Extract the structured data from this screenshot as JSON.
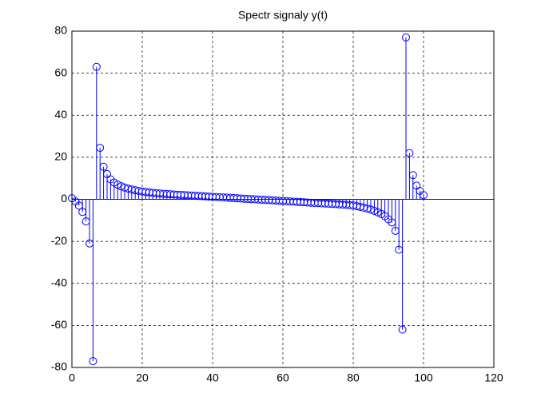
{
  "chart_data": {
    "type": "stem",
    "title": "Spectr signaly y(t)",
    "x": [
      0,
      1,
      2,
      3,
      4,
      5,
      6,
      7,
      8,
      9,
      10,
      11,
      12,
      13,
      14,
      15,
      16,
      17,
      18,
      19,
      20,
      21,
      22,
      23,
      24,
      25,
      26,
      27,
      28,
      29,
      30,
      31,
      32,
      33,
      34,
      35,
      36,
      37,
      38,
      39,
      40,
      41,
      42,
      43,
      44,
      45,
      46,
      47,
      48,
      49,
      50,
      51,
      52,
      53,
      54,
      55,
      56,
      57,
      58,
      59,
      60,
      61,
      62,
      63,
      64,
      65,
      66,
      67,
      68,
      69,
      70,
      71,
      72,
      73,
      74,
      75,
      76,
      77,
      78,
      79,
      80,
      81,
      82,
      83,
      84,
      85,
      86,
      87,
      88,
      89,
      90,
      91,
      92,
      93,
      94,
      95,
      96,
      97,
      98,
      99,
      100
    ],
    "values": [
      0.5,
      -1,
      -3,
      -6,
      -10.5,
      -21,
      -77,
      63,
      24.5,
      15.5,
      12,
      9.5,
      8,
      7,
      6.2,
      5.6,
      5.1,
      4.7,
      4.3,
      4,
      3.7,
      3.5,
      3.3,
      3.1,
      2.9,
      2.8,
      2.6,
      2.5,
      2.4,
      2.3,
      2.2,
      2.1,
      2,
      1.9,
      1.8,
      1.7,
      1.6,
      1.5,
      1.4,
      1.3,
      1.2,
      1.1,
      1,
      0.9,
      0.8,
      0.7,
      0.6,
      0.5,
      0.4,
      0.3,
      0.2,
      0.1,
      0,
      -0.1,
      -0.2,
      -0.3,
      -0.4,
      -0.5,
      -0.6,
      -0.7,
      -0.8,
      -0.9,
      -1,
      -1.1,
      -1.2,
      -1.3,
      -1.4,
      -1.5,
      -1.6,
      -1.7,
      -1.8,
      -1.9,
      -2,
      -2.1,
      -2.2,
      -2.3,
      -2.4,
      -2.5,
      -2.6,
      -2.8,
      -2.9,
      -3.3,
      -3.6,
      -4,
      -4.4,
      -4.9,
      -5.5,
      -6.2,
      -7,
      -8,
      -9.5,
      -11,
      -15,
      -24,
      -62,
      77,
      22,
      11.5,
      6.5,
      4,
      2
    ],
    "color": "#0000ff",
    "xlim": [
      0,
      120
    ],
    "xticks": [
      0,
      20,
      40,
      60,
      80,
      100,
      120
    ],
    "ylim": [
      -80,
      80
    ],
    "yticks": [
      -80,
      -60,
      -40,
      -20,
      0,
      20,
      40,
      60,
      80
    ],
    "grid": true
  }
}
